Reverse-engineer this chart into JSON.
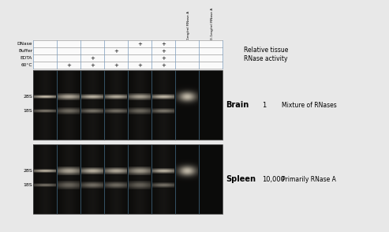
{
  "fig_bg": "#e8e8e8",
  "header_rows": [
    "DNase",
    "Buffer",
    "EDTA",
    "60°C"
  ],
  "plus_positions": {
    "DNase": [
      4,
      5
    ],
    "Buffer": [
      3,
      5
    ],
    "EDTA": [
      2,
      5
    ],
    "60C": [
      1,
      2,
      3,
      4,
      5
    ]
  },
  "lane_labels_top": [
    "1mg/ml RNase A",
    "0.1mg/ml RNase A"
  ],
  "band_labels": [
    "28S",
    "18S"
  ],
  "gel_panels": [
    {
      "label": "Brain",
      "activity": "1",
      "desc": "Mixture of RNases"
    },
    {
      "label": "Spleen",
      "activity": "10,000",
      "desc": "Primarily RNase A"
    }
  ],
  "right_header": "Relative tissue\nRNase activity",
  "fig_bg_hex": "#e8e8e8",
  "header_bg": "#f5f5f5",
  "gel_dark": "#0a0a0a",
  "lane_div_color": "#3a6a8a",
  "text_color": "#111111"
}
